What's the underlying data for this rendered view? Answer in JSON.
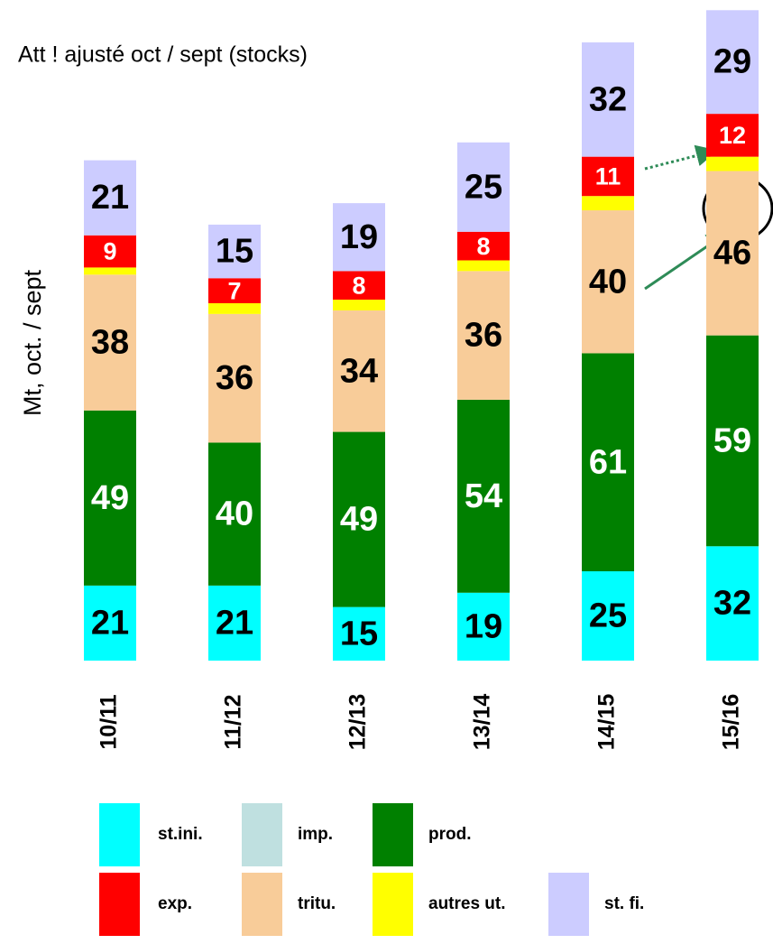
{
  "chart_data": {
    "type": "bar",
    "stacked": true,
    "annotation": "Att ! ajusté oct / sept (stocks)",
    "y_label": "Mt, oct. / sept",
    "categories": [
      "10/11",
      "11/12",
      "12/13",
      "13/14",
      "14/15",
      "15/16"
    ],
    "series": [
      {
        "name": "st.ini.",
        "color": "#00ffff",
        "values": [
          21,
          21,
          15,
          19,
          25,
          32
        ]
      },
      {
        "name": "imp.",
        "color": "#bfe0e0",
        "values": [
          0,
          0,
          0,
          0,
          0,
          0
        ]
      },
      {
        "name": "prod.",
        "color": "#008000",
        "values": [
          49,
          40,
          49,
          54,
          61,
          59
        ]
      },
      {
        "name": "exp.",
        "color": "#ff0000",
        "values": [
          9,
          7,
          8,
          8,
          11,
          12
        ]
      },
      {
        "name": "tritu.",
        "color": "#f8cc99",
        "values": [
          38,
          36,
          34,
          36,
          40,
          46
        ]
      },
      {
        "name": "autres ut.",
        "color": "#ffff00",
        "values": [
          2,
          3,
          3,
          3,
          4,
          4
        ]
      },
      {
        "name": "st. fi.",
        "color": "#ccccff",
        "values": [
          21,
          15,
          19,
          25,
          32,
          29
        ]
      }
    ]
  }
}
